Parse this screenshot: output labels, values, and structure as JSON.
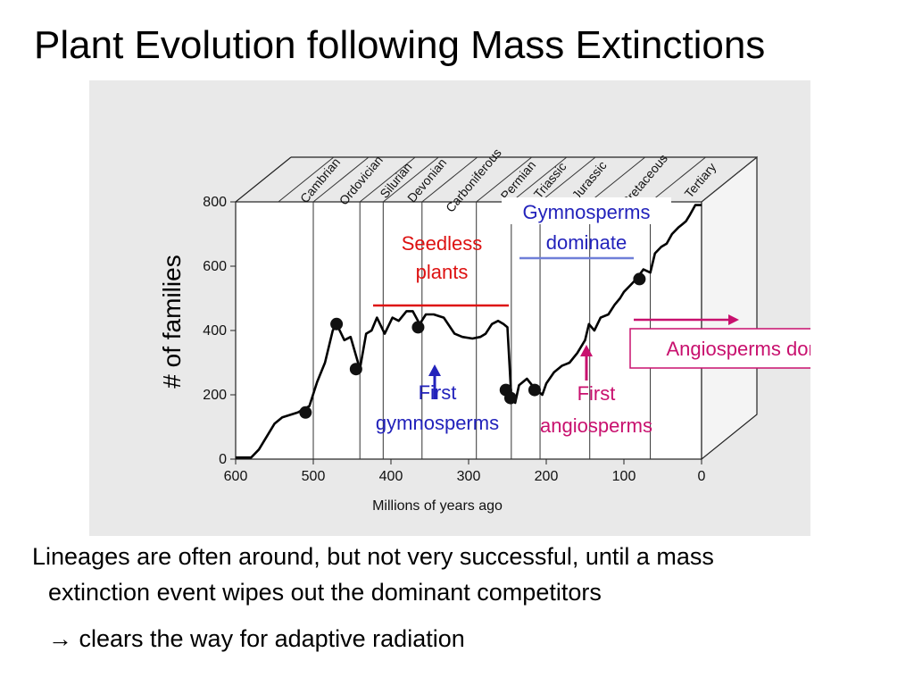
{
  "slide": {
    "title": "Plant Evolution following Mass Extinctions",
    "body_line1": "Lineages are often around, but not very successful, until a mass",
    "body_line2": "extinction event wipes out the dominant competitors",
    "body_line3": "→ clears the way for adaptive radiation"
  },
  "chart_data": {
    "type": "line",
    "title": "",
    "xlabel": "Millions of years ago",
    "ylabel": "# of families",
    "xlim": [
      600,
      0
    ],
    "ylim": [
      0,
      800
    ],
    "x_ticks": [
      600,
      500,
      400,
      300,
      200,
      100,
      0
    ],
    "y_ticks": [
      0,
      200,
      400,
      600,
      800
    ],
    "grid": "vertical period boundaries",
    "periods": [
      {
        "name": "Cambrian",
        "start": 545,
        "end": 500
      },
      {
        "name": "Ordovician",
        "start": 500,
        "end": 440
      },
      {
        "name": "Silurian",
        "start": 440,
        "end": 410
      },
      {
        "name": "Devonian",
        "start": 410,
        "end": 360
      },
      {
        "name": "Carboniferous",
        "start": 360,
        "end": 290
      },
      {
        "name": "Permian",
        "start": 290,
        "end": 245
      },
      {
        "name": "Triassic",
        "start": 245,
        "end": 208
      },
      {
        "name": "Jurassic",
        "start": 208,
        "end": 144
      },
      {
        "name": "Cretaceous",
        "start": 144,
        "end": 66
      },
      {
        "name": "Tertiary",
        "start": 66,
        "end": 0
      }
    ],
    "series": [
      {
        "name": "",
        "color": "#000000",
        "points": [
          [
            600,
            5
          ],
          [
            580,
            5
          ],
          [
            570,
            30
          ],
          [
            560,
            70
          ],
          [
            550,
            110
          ],
          [
            540,
            130
          ],
          [
            520,
            145
          ],
          [
            505,
            165
          ],
          [
            495,
            240
          ],
          [
            485,
            300
          ],
          [
            475,
            400
          ],
          [
            470,
            420
          ],
          [
            460,
            370
          ],
          [
            452,
            380
          ],
          [
            440,
            280
          ],
          [
            432,
            390
          ],
          [
            425,
            400
          ],
          [
            418,
            440
          ],
          [
            408,
            390
          ],
          [
            398,
            440
          ],
          [
            390,
            430
          ],
          [
            380,
            460
          ],
          [
            372,
            460
          ],
          [
            363,
            420
          ],
          [
            355,
            450
          ],
          [
            345,
            450
          ],
          [
            332,
            440
          ],
          [
            318,
            390
          ],
          [
            308,
            380
          ],
          [
            295,
            375
          ],
          [
            285,
            380
          ],
          [
            278,
            390
          ],
          [
            270,
            420
          ],
          [
            262,
            430
          ],
          [
            255,
            420
          ],
          [
            250,
            410
          ],
          [
            245,
            190
          ],
          [
            240,
            175
          ],
          [
            235,
            230
          ],
          [
            225,
            250
          ],
          [
            215,
            220
          ],
          [
            205,
            200
          ],
          [
            200,
            235
          ],
          [
            190,
            270
          ],
          [
            180,
            290
          ],
          [
            170,
            300
          ],
          [
            160,
            330
          ],
          [
            150,
            370
          ],
          [
            145,
            420
          ],
          [
            138,
            400
          ],
          [
            130,
            440
          ],
          [
            120,
            450
          ],
          [
            112,
            480
          ],
          [
            105,
            500
          ],
          [
            100,
            520
          ],
          [
            92,
            540
          ],
          [
            84,
            560
          ],
          [
            75,
            590
          ],
          [
            66,
            580
          ],
          [
            60,
            640
          ],
          [
            52,
            660
          ],
          [
            45,
            670
          ],
          [
            38,
            700
          ],
          [
            30,
            720
          ],
          [
            25,
            730
          ],
          [
            20,
            740
          ],
          [
            15,
            760
          ],
          [
            8,
            790
          ],
          [
            0,
            790
          ]
        ]
      }
    ],
    "markers": [
      {
        "x": 510,
        "y": 145
      },
      {
        "x": 470,
        "y": 420
      },
      {
        "x": 445,
        "y": 280
      },
      {
        "x": 365,
        "y": 410
      },
      {
        "x": 252,
        "y": 215
      },
      {
        "x": 246,
        "y": 190
      },
      {
        "x": 215,
        "y": 215
      },
      {
        "x": 80,
        "y": 560
      }
    ],
    "annotations": {
      "seedless": {
        "line1": "Seedless",
        "line2": "plants",
        "color": "#dd1111"
      },
      "gymno_dominate": {
        "line1": "Gymnosperms",
        "line2": "dominate",
        "color": "#2222bb"
      },
      "first_gymno": {
        "line1": "First",
        "line2": "gymnosperms",
        "color": "#2222bb"
      },
      "first_angio": {
        "line1": "First",
        "line2": "angiosperms",
        "color": "#c8106e"
      },
      "angio_dominate": {
        "text": "Angiosperms dominate",
        "color": "#c8106e"
      }
    }
  }
}
